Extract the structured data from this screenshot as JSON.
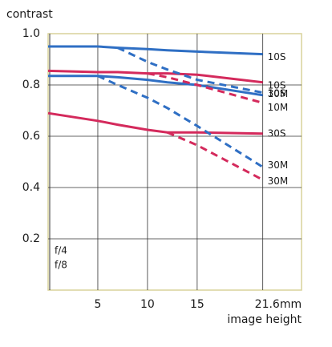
{
  "chart_data": {
    "type": "line",
    "ylabel": "contrast",
    "xlabel": "image height",
    "x": [
      0,
      5,
      7,
      10,
      12,
      15,
      21.6
    ],
    "xlim": [
      0,
      25.5
    ],
    "ylim": [
      0,
      1
    ],
    "xticks": [
      5,
      10,
      15,
      {
        "value": 21.6,
        "label": "21.6mm"
      }
    ],
    "yticks": [
      0.2,
      0.4,
      0.6,
      0.8,
      {
        "value": 1,
        "label": "1.0"
      }
    ],
    "grid": true,
    "series": [
      {
        "name": "10S",
        "color": "#2f6fc4",
        "dashed": false,
        "values": [
          0.95,
          0.95,
          0.945,
          0.94,
          0.935,
          0.93,
          0.92
        ]
      },
      {
        "name": "10S",
        "color": "#d42a5c",
        "dashed": false,
        "values": [
          0.855,
          0.85,
          0.85,
          0.845,
          0.845,
          0.84,
          0.81
        ]
      },
      {
        "name": "10M",
        "color": "#2f6fc4",
        "dashed": true,
        "values": [
          null,
          null,
          0.945,
          0.89,
          0.86,
          0.82,
          0.77
        ]
      },
      {
        "name": "30S",
        "color": "#2f6fc4",
        "dashed": false,
        "values": [
          0.835,
          0.835,
          0.83,
          0.82,
          0.81,
          0.8,
          0.76
        ]
      },
      {
        "name": "10M",
        "color": "#d42a5c",
        "dashed": true,
        "values": [
          null,
          null,
          null,
          0.845,
          0.83,
          0.8,
          0.73
        ]
      },
      {
        "name": "30S",
        "color": "#d42a5c",
        "dashed": false,
        "values": [
          0.69,
          0.66,
          0.645,
          0.625,
          0.615,
          0.615,
          0.61
        ]
      },
      {
        "name": "30M",
        "color": "#2f6fc4",
        "dashed": true,
        "values": [
          null,
          0.835,
          0.8,
          0.75,
          0.71,
          0.64,
          0.48
        ]
      },
      {
        "name": "30M",
        "color": "#d42a5c",
        "dashed": true,
        "values": [
          null,
          null,
          null,
          null,
          0.615,
          0.565,
          0.43
        ]
      }
    ],
    "legend": [
      {
        "label": "f/4",
        "color": "#d42a5c"
      },
      {
        "label": "f/8",
        "color": "#2f6fc4"
      }
    ]
  }
}
